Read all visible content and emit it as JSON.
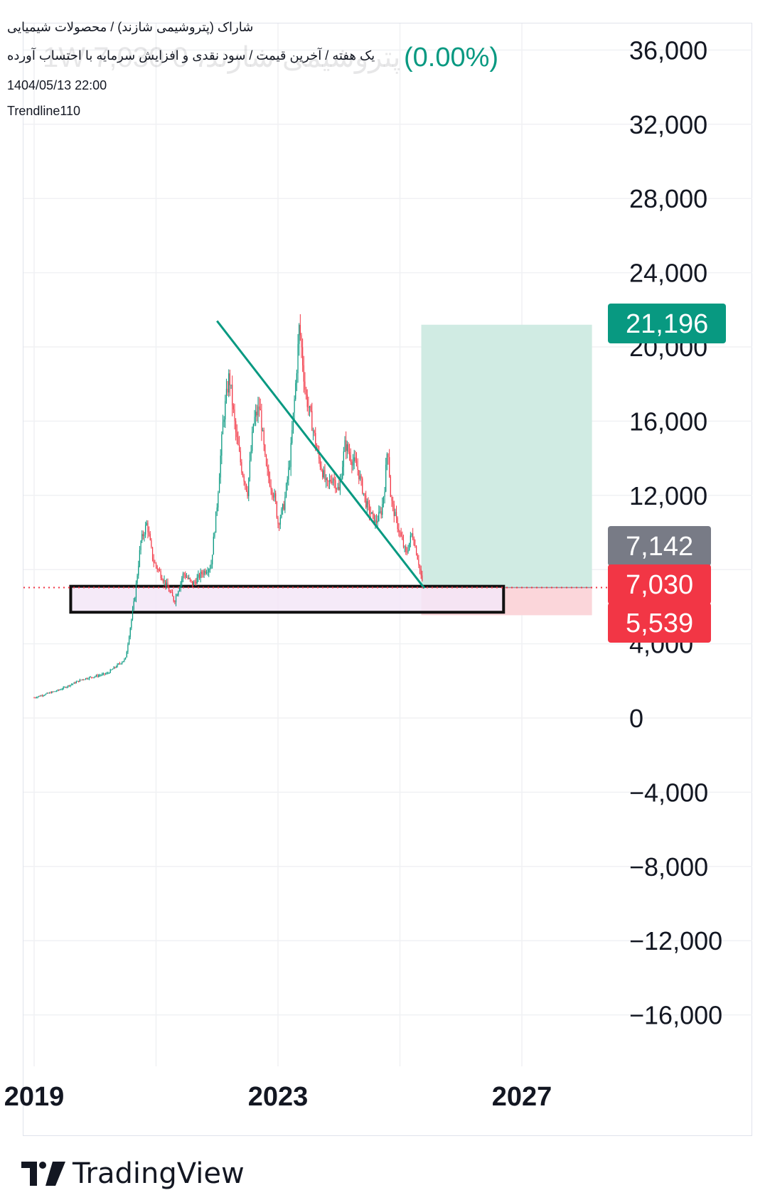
{
  "header": {
    "title": "شاراک (پتروشیمی شازند) / محصولات شیمیایی",
    "subtitle": "یک هفته / آخرین قیمت / سود نقدی و افزایش سرمایه با احتساب آورده",
    "datetime": "1404/05/13 22:00",
    "indicator": "Trendline110",
    "ghost_text": "پتروشیمی شازند، 1W 7,030 0",
    "change_percent": "(0.00%)"
  },
  "branding": {
    "logo_text": "TradingView",
    "logo_icon": "tradingview-logo-icon"
  },
  "colors": {
    "up": "#089981",
    "down": "#f23645",
    "trendline": "#089981",
    "target_zone": "#d0ebe3",
    "stop_zone": "#fbd6da",
    "support_box_fill": "#f3e6f7",
    "support_box_border": "#111111",
    "grid": "#f0f1f4",
    "last_price_line": "#f23645"
  },
  "chart_data": {
    "type": "candlestick",
    "interval": "1W",
    "x_ticks": [
      "2019",
      "2023",
      "2027"
    ],
    "y_ticks": [
      "36,000",
      "32,000",
      "28,000",
      "24,000",
      "20,000",
      "16,000",
      "12,000",
      "8,000",
      "4,000",
      "0",
      "−4,000",
      "−8,000",
      "−12,000",
      "−16,000"
    ],
    "ylim": [
      -18000,
      38000
    ],
    "grid": true,
    "price_path": [
      [
        2019.0,
        1100
      ],
      [
        2019.4,
        1500
      ],
      [
        2019.8,
        2100
      ],
      [
        2020.2,
        2400
      ],
      [
        2020.5,
        3200
      ],
      [
        2020.65,
        6500
      ],
      [
        2020.75,
        9500
      ],
      [
        2020.85,
        10500
      ],
      [
        2020.95,
        8500
      ],
      [
        2021.1,
        7600
      ],
      [
        2021.3,
        6300
      ],
      [
        2021.45,
        7800
      ],
      [
        2021.6,
        7200
      ],
      [
        2021.75,
        7800
      ],
      [
        2021.9,
        8200
      ],
      [
        2022.0,
        11500
      ],
      [
        2022.1,
        16000
      ],
      [
        2022.2,
        18500
      ],
      [
        2022.3,
        15500
      ],
      [
        2022.4,
        13500
      ],
      [
        2022.5,
        12200
      ],
      [
        2022.6,
        16000
      ],
      [
        2022.7,
        16800
      ],
      [
        2022.8,
        13500
      ],
      [
        2022.95,
        11800
      ],
      [
        2023.0,
        10500
      ],
      [
        2023.1,
        11500
      ],
      [
        2023.2,
        14000
      ],
      [
        2023.3,
        18500
      ],
      [
        2023.35,
        21196
      ],
      [
        2023.45,
        17500
      ],
      [
        2023.55,
        16000
      ],
      [
        2023.65,
        14200
      ],
      [
        2023.8,
        12500
      ],
      [
        2023.9,
        13000
      ],
      [
        2024.0,
        12200
      ],
      [
        2024.1,
        14800
      ],
      [
        2024.2,
        14000
      ],
      [
        2024.3,
        13500
      ],
      [
        2024.45,
        11500
      ],
      [
        2024.6,
        10500
      ],
      [
        2024.7,
        11200
      ],
      [
        2024.75,
        12500
      ],
      [
        2024.8,
        14800
      ],
      [
        2024.85,
        11800
      ],
      [
        2024.95,
        10500
      ],
      [
        2025.1,
        8800
      ],
      [
        2025.2,
        10000
      ],
      [
        2025.3,
        8500
      ],
      [
        2025.38,
        7030
      ]
    ],
    "trendline": {
      "from": [
        2022.0,
        21400
      ],
      "to": [
        2025.4,
        7000
      ]
    },
    "position": {
      "entry": 7030,
      "target": 21196,
      "stop": 5539,
      "x_start": 2025.35,
      "x_end": 2028.15
    },
    "support_zone": {
      "x_start": 2019.6,
      "x_end": 2026.7,
      "low": 5700,
      "high": 7100
    },
    "price_labels": [
      {
        "value": "21,196",
        "color": "#089981",
        "kind": "target"
      },
      {
        "value": "7,142",
        "color": "#787b86",
        "kind": "high"
      },
      {
        "value": "7,030",
        "color": "#f23645",
        "kind": "last"
      },
      {
        "value": "5,539",
        "color": "#f23645",
        "kind": "stop"
      }
    ]
  }
}
